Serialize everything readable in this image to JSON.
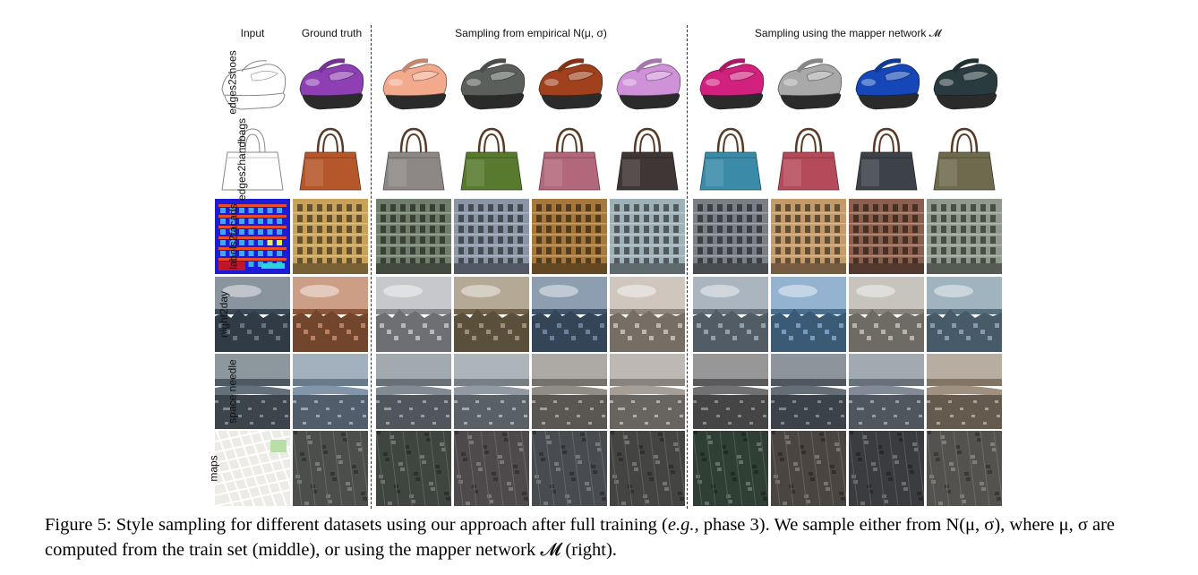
{
  "figure": {
    "column_headers": {
      "input": "Input",
      "ground_truth": "Ground truth",
      "empirical": "Sampling from empirical N(μ, σ)",
      "mapper": "Sampling using the mapper network 𝓜"
    },
    "rows": [
      {
        "label": "edges2shoes",
        "kind": "shoe",
        "ground_truth_color": "#8e3fb3",
        "empirical_colors": [
          "#f3a98c",
          "#5a5f5c",
          "#a1401c",
          "#cf92d8"
        ],
        "mapper_colors": [
          "#d2207f",
          "#a9a9a9",
          "#1547b8",
          "#2a3b3f"
        ]
      },
      {
        "label": "edges2handbags",
        "kind": "bag",
        "ground_truth_color": "#b5572a",
        "empirical_colors": [
          "#8d8886",
          "#577a2f",
          "#b2687a",
          "#3f3735"
        ],
        "mapper_colors": [
          "#3a8aa8",
          "#b54b5a",
          "#3d4248",
          "#6e6a4e"
        ]
      },
      {
        "label": "labels2facads",
        "kind": "facade",
        "ground_truth_color": "#c9a25a",
        "empirical_colors": [
          "#6f7d6a",
          "#8a95a6",
          "#a7773b",
          "#9fb1b8"
        ],
        "mapper_colors": [
          "#7a7f86",
          "#c49a6a",
          "#8c5f4c",
          "#8f9a8c"
        ]
      },
      {
        "label": "night2day",
        "kind": "city",
        "ground_truth_color": "#b06a45",
        "empirical_colors": [
          "#a8aab0",
          "#8b7a5a",
          "#506a86",
          "#b5a89a"
        ],
        "mapper_colors": [
          "#7e8d9c",
          "#5b8ab6",
          "#a9a49a",
          "#6d8b9e"
        ]
      },
      {
        "label": "space needle",
        "kind": "aerial",
        "ground_truth_color": "#7c8fa3",
        "empirical_colors": [
          "#7b858d",
          "#8b959d",
          "#8a8680",
          "#a09a93"
        ],
        "mapper_colors": [
          "#6a6a6c",
          "#5d6670",
          "#7a8490",
          "#9a8a78"
        ]
      },
      {
        "label": "maps",
        "kind": "map",
        "ground_truth_color": "#4b4e4a",
        "empirical_colors": [
          "#3f4640",
          "#4e4a4c",
          "#484b50",
          "#444543"
        ],
        "mapper_colors": [
          "#2f3f34",
          "#4a4540",
          "#3a3c3f",
          "#54524e"
        ]
      }
    ]
  },
  "caption": {
    "part1": "Figure 5: Style sampling for different datasets using our approach after full training (",
    "eg": "e.g.,",
    "part2": " phase 3). We sample either from ",
    "part3": "N(μ, σ), where μ, σ are computed from the train set (middle), or using the mapper network 𝓜 (right)."
  }
}
